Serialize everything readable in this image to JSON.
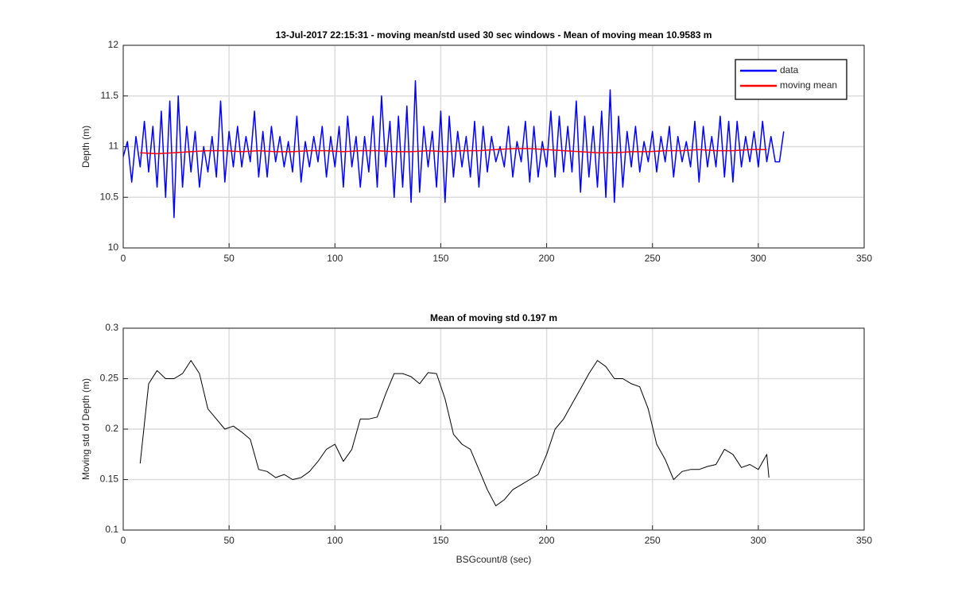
{
  "chart_data": [
    {
      "type": "line",
      "title": "13-Jul-2017 22:15:31 - moving mean/std used 30 sec windows - Mean of moving mean 10.9583 m",
      "ylabel": "Depth (m)",
      "xlim": [
        0,
        350
      ],
      "xticks": [
        0,
        50,
        100,
        150,
        200,
        250,
        300,
        350
      ],
      "ylim": [
        10,
        12
      ],
      "yticks": [
        10,
        10.5,
        11,
        11.5,
        12
      ],
      "grid": true,
      "legend": "northeast",
      "series": [
        {
          "name": "data",
          "color": "#0000ff",
          "x": [
            0,
            2,
            4,
            6,
            8,
            10,
            12,
            14,
            16,
            18,
            20,
            22,
            24,
            26,
            28,
            30,
            32,
            34,
            36,
            38,
            40,
            42,
            44,
            46,
            48,
            50,
            52,
            54,
            56,
            58,
            60,
            62,
            64,
            66,
            68,
            70,
            72,
            74,
            76,
            78,
            80,
            82,
            84,
            86,
            88,
            90,
            92,
            94,
            96,
            98,
            100,
            102,
            104,
            106,
            108,
            110,
            112,
            114,
            116,
            118,
            120,
            122,
            124,
            126,
            128,
            130,
            132,
            134,
            136,
            138,
            140,
            142,
            144,
            146,
            148,
            150,
            152,
            154,
            156,
            158,
            160,
            162,
            164,
            166,
            168,
            170,
            172,
            174,
            176,
            178,
            180,
            182,
            184,
            186,
            188,
            190,
            192,
            194,
            196,
            198,
            200,
            202,
            204,
            206,
            208,
            210,
            212,
            214,
            216,
            218,
            220,
            222,
            224,
            226,
            228,
            230,
            232,
            234,
            236,
            238,
            240,
            242,
            244,
            246,
            248,
            250,
            252,
            254,
            256,
            258,
            260,
            262,
            264,
            266,
            268,
            270,
            272,
            274,
            276,
            278,
            280,
            282,
            284,
            286,
            288,
            290,
            292,
            294,
            296,
            298,
            300,
            302,
            304,
            306,
            308,
            310,
            312
          ],
          "values": [
            10.9,
            11.05,
            10.65,
            11.1,
            10.8,
            11.25,
            10.75,
            11.2,
            10.6,
            11.35,
            10.5,
            11.45,
            10.3,
            11.5,
            10.6,
            11.2,
            10.75,
            11.15,
            10.6,
            11.0,
            10.75,
            11.1,
            10.7,
            11.45,
            10.65,
            11.15,
            10.8,
            11.2,
            10.8,
            11.1,
            10.85,
            11.35,
            10.7,
            11.15,
            10.7,
            11.2,
            10.85,
            11.1,
            10.8,
            11.05,
            10.75,
            11.3,
            10.65,
            11.05,
            10.8,
            11.1,
            10.85,
            11.2,
            10.7,
            11.1,
            10.8,
            11.2,
            10.6,
            11.3,
            10.8,
            11.1,
            10.6,
            11.1,
            10.75,
            11.3,
            10.6,
            11.5,
            10.8,
            11.25,
            10.5,
            11.3,
            10.6,
            11.4,
            10.45,
            11.65,
            10.55,
            11.2,
            10.8,
            11.15,
            10.6,
            11.35,
            10.45,
            11.3,
            10.7,
            11.15,
            10.8,
            11.1,
            10.7,
            11.25,
            10.6,
            11.2,
            10.75,
            11.1,
            10.85,
            11.0,
            10.8,
            11.2,
            10.7,
            11.05,
            10.85,
            11.25,
            10.65,
            11.2,
            10.7,
            11.05,
            10.8,
            11.35,
            10.7,
            11.3,
            10.75,
            11.2,
            10.75,
            11.45,
            10.55,
            11.3,
            10.7,
            11.2,
            10.6,
            11.35,
            10.5,
            11.56,
            10.45,
            11.3,
            10.6,
            11.15,
            10.8,
            11.2,
            10.75,
            11.05,
            10.85,
            11.15,
            10.75,
            11.1,
            10.85,
            11.2,
            10.7,
            11.1,
            10.85,
            11.05,
            10.8,
            11.25,
            10.65,
            11.2,
            10.8,
            11.1,
            10.8,
            11.3,
            10.7,
            11.25,
            10.65,
            11.25,
            10.8,
            11.1,
            10.85,
            11.15,
            10.8,
            11.25,
            10.85,
            11.1,
            10.85,
            10.85,
            11.15
          ]
        },
        {
          "name": "moving mean",
          "color": "#ff0000",
          "x": [
            8,
            16,
            24,
            32,
            40,
            48,
            56,
            64,
            72,
            80,
            88,
            96,
            104,
            112,
            120,
            128,
            136,
            144,
            152,
            160,
            168,
            176,
            184,
            192,
            200,
            208,
            216,
            224,
            232,
            240,
            248,
            256,
            264,
            272,
            280,
            288,
            296,
            304
          ],
          "values": [
            10.94,
            10.93,
            10.94,
            10.95,
            10.96,
            10.96,
            10.95,
            10.96,
            10.95,
            10.95,
            10.96,
            10.96,
            10.95,
            10.96,
            10.96,
            10.95,
            10.95,
            10.96,
            10.95,
            10.96,
            10.96,
            10.97,
            10.98,
            10.98,
            10.97,
            10.96,
            10.95,
            10.94,
            10.94,
            10.95,
            10.95,
            10.96,
            10.96,
            10.97,
            10.96,
            10.96,
            10.97,
            10.97
          ]
        }
      ]
    },
    {
      "type": "line",
      "title": "Mean of moving std 0.197 m",
      "ylabel": "Moving std of Depth (m)",
      "xlabel": "BSGcount/8 (sec)",
      "xlim": [
        0,
        350
      ],
      "xticks": [
        0,
        50,
        100,
        150,
        200,
        250,
        300,
        350
      ],
      "ylim": [
        0.1,
        0.3
      ],
      "yticks": [
        0.1,
        0.15,
        0.2,
        0.25,
        0.3
      ],
      "grid": true,
      "series": [
        {
          "color": "#000000",
          "x": [
            8,
            12,
            16,
            20,
            24,
            28,
            32,
            36,
            40,
            44,
            48,
            52,
            56,
            60,
            64,
            68,
            72,
            76,
            80,
            84,
            88,
            92,
            96,
            100,
            104,
            108,
            112,
            116,
            120,
            124,
            128,
            132,
            136,
            140,
            144,
            148,
            152,
            156,
            160,
            164,
            168,
            172,
            176,
            180,
            184,
            188,
            192,
            196,
            200,
            204,
            208,
            212,
            216,
            220,
            224,
            228,
            232,
            236,
            240,
            244,
            248,
            252,
            256,
            260,
            264,
            268,
            272,
            276,
            280,
            284,
            288,
            292,
            296,
            300,
            304,
            305
          ],
          "values": [
            0.166,
            0.245,
            0.258,
            0.25,
            0.25,
            0.255,
            0.268,
            0.255,
            0.22,
            0.21,
            0.2,
            0.203,
            0.197,
            0.19,
            0.16,
            0.158,
            0.152,
            0.155,
            0.15,
            0.152,
            0.158,
            0.168,
            0.18,
            0.185,
            0.168,
            0.18,
            0.21,
            0.21,
            0.212,
            0.235,
            0.255,
            0.255,
            0.252,
            0.245,
            0.256,
            0.255,
            0.23,
            0.195,
            0.185,
            0.18,
            0.16,
            0.14,
            0.124,
            0.13,
            0.14,
            0.145,
            0.15,
            0.155,
            0.175,
            0.2,
            0.21,
            0.225,
            0.24,
            0.255,
            0.268,
            0.262,
            0.25,
            0.25,
            0.245,
            0.242,
            0.22,
            0.185,
            0.17,
            0.15,
            0.158,
            0.16,
            0.16,
            0.163,
            0.165,
            0.18,
            0.175,
            0.162,
            0.165,
            0.16,
            0.175,
            0.152
          ]
        }
      ]
    }
  ]
}
